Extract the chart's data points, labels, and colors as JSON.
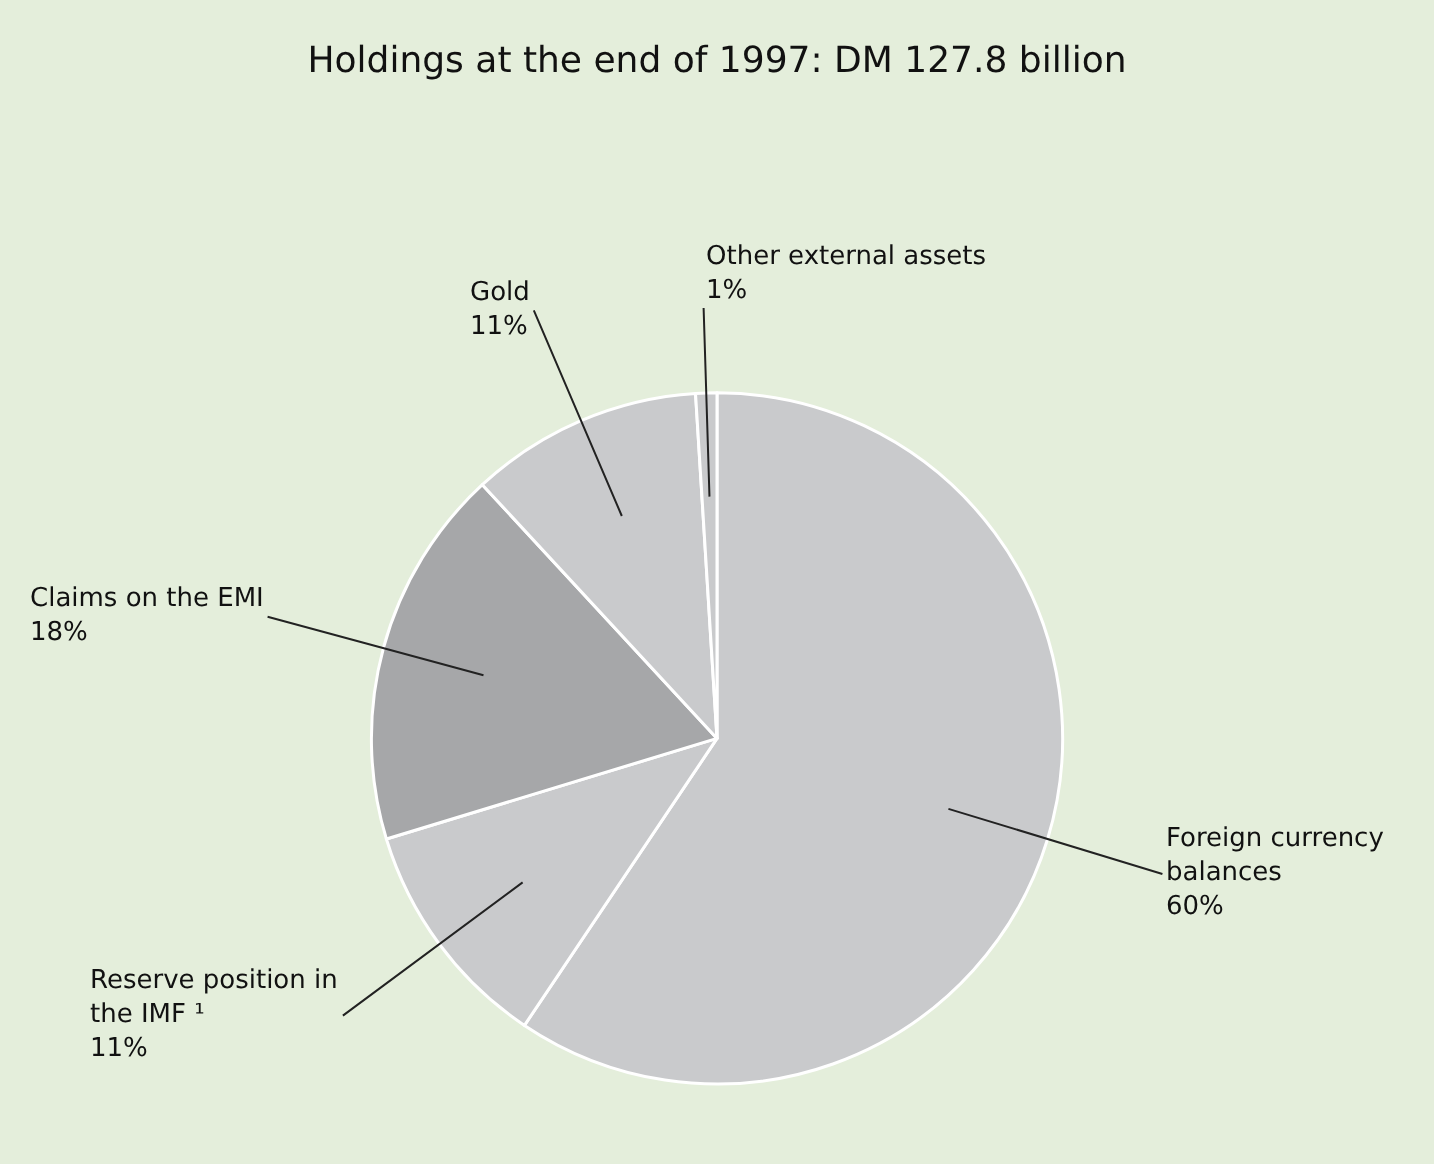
{
  "chart_data": {
    "type": "pie",
    "title": "Holdings at the end of 1997: DM 127.8 billion",
    "categories": [
      "Foreign currency balances",
      "Reserve position in the IMF ¹",
      "Claims on the EMI",
      "Gold",
      "Other external assets"
    ],
    "values": [
      60,
      11,
      18,
      11,
      1
    ],
    "colors": [
      "#c9cacc",
      "#c9cacc",
      "#a6a7a9",
      "#c9cacc",
      "#c9cacc"
    ],
    "value_labels": [
      "60%",
      "11%",
      "18%",
      "11%",
      "1%"
    ],
    "legend": false
  }
}
